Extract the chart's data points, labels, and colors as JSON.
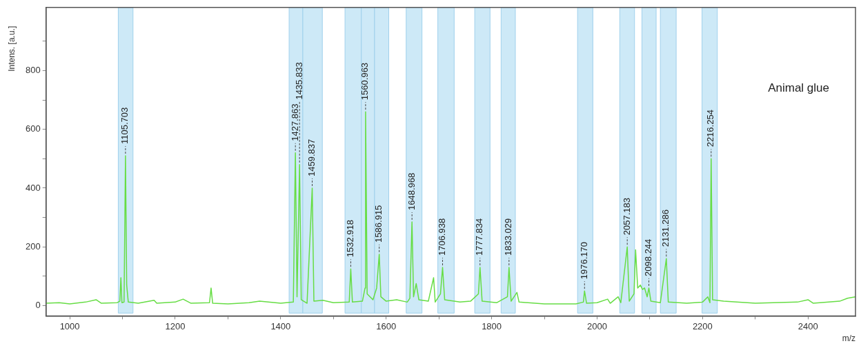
{
  "chart_data": {
    "type": "line",
    "xlabel": "m/z",
    "ylabel": "Intens. [a.u.]",
    "grid": false,
    "legend": false,
    "marker": "none",
    "line_style": "solid",
    "xlim": [
      955,
      2490
    ],
    "ylim": [
      -35,
      1015
    ],
    "xticks": [
      1000,
      {
        "value": 1100,
        "label": null
      },
      1200,
      {
        "value": 1300,
        "label": null
      },
      1400,
      {
        "value": 1500,
        "label": null
      },
      1600,
      {
        "value": 1700,
        "label": null
      },
      1800,
      {
        "value": 1900,
        "label": null
      },
      2000,
      {
        "value": 2100,
        "label": null
      },
      2200,
      {
        "value": 2300,
        "label": null
      },
      2400
    ],
    "yticks": [
      0,
      {
        "value": 100,
        "label": null
      },
      200,
      {
        "value": 300,
        "label": null
      },
      400,
      {
        "value": 500,
        "label": null
      },
      600,
      {
        "value": 700,
        "label": null
      },
      800,
      {
        "value": 900,
        "label": null
      }
    ],
    "series": [
      {
        "color": "#66dd44",
        "x": [
          955,
          980,
          1000,
          1030,
          1050,
          1060,
          1090,
          1095,
          1097,
          1099,
          1103,
          1105.7,
          1108,
          1111,
          1130,
          1160,
          1165,
          1200,
          1215,
          1230,
          1265,
          1268,
          1271,
          1300,
          1340,
          1360,
          1400,
          1424,
          1427.9,
          1431,
          1435.8,
          1439,
          1450,
          1459.8,
          1463,
          1480,
          1500,
          1530,
          1532.9,
          1536,
          1555,
          1560,
          1561,
          1564,
          1575,
          1582,
          1586.9,
          1590,
          1600,
          1620,
          1640,
          1645,
          1649,
          1652,
          1657,
          1662,
          1680,
          1690,
          1693,
          1703,
          1707,
          1711,
          1740,
          1760,
          1775,
          1778,
          1782,
          1810,
          1830,
          1833,
          1837,
          1848,
          1852,
          1900,
          1960,
          1974,
          1976.2,
          1980,
          2000,
          2020,
          2025,
          2040,
          2045,
          2057.2,
          2061,
          2070,
          2073,
          2077,
          2082,
          2086,
          2090,
          2095,
          2098.2,
          2102,
          2120,
          2131.3,
          2135,
          2170,
          2200,
          2210,
          2214,
          2216.3,
          2219,
          2240,
          2300,
          2380,
          2400,
          2410,
          2460,
          2475,
          2490
        ],
        "values": [
          8,
          10,
          6,
          12,
          20,
          8,
          10,
          15,
          95,
          10,
          12,
          510,
          70,
          12,
          8,
          18,
          8,
          12,
          22,
          8,
          10,
          60,
          8,
          6,
          10,
          15,
          8,
          12,
          520,
          30,
          480,
          20,
          8,
          400,
          15,
          18,
          10,
          12,
          125,
          12,
          15,
          60,
          660,
          40,
          20,
          60,
          175,
          30,
          15,
          20,
          12,
          25,
          285,
          30,
          75,
          20,
          15,
          95,
          12,
          40,
          130,
          20,
          12,
          15,
          40,
          130,
          15,
          10,
          30,
          130,
          15,
          45,
          12,
          6,
          6,
          12,
          50,
          8,
          10,
          22,
          8,
          30,
          10,
          200,
          15,
          40,
          190,
          60,
          70,
          55,
          60,
          30,
          60,
          15,
          10,
          160,
          12,
          8,
          12,
          30,
          10,
          500,
          20,
          15,
          8,
          12,
          20,
          8,
          15,
          25,
          30
        ]
      }
    ],
    "bands": [
      {
        "axis": "x",
        "from": 1092,
        "to": 1120,
        "color": "#cde9f7"
      },
      {
        "axis": "x",
        "from": 1416,
        "to": 1442,
        "color": "#cde9f7"
      },
      {
        "axis": "x",
        "from": 1442,
        "to": 1479,
        "color": "#cde9f7"
      },
      {
        "axis": "x",
        "from": 1522,
        "to": 1553,
        "color": "#cde9f7"
      },
      {
        "axis": "x",
        "from": 1553,
        "to": 1578,
        "color": "#cde9f7"
      },
      {
        "axis": "x",
        "from": 1578,
        "to": 1605,
        "color": "#cde9f7"
      },
      {
        "axis": "x",
        "from": 1638,
        "to": 1668,
        "color": "#cde9f7"
      },
      {
        "axis": "x",
        "from": 1698,
        "to": 1729,
        "color": "#cde9f7"
      },
      {
        "axis": "x",
        "from": 1768,
        "to": 1797,
        "color": "#cde9f7"
      },
      {
        "axis": "x",
        "from": 1818,
        "to": 1845,
        "color": "#cde9f7"
      },
      {
        "axis": "x",
        "from": 1963,
        "to": 1992,
        "color": "#cde9f7"
      },
      {
        "axis": "x",
        "from": 2043,
        "to": 2071,
        "color": "#cde9f7"
      },
      {
        "axis": "x",
        "from": 2085,
        "to": 2112,
        "color": "#cde9f7"
      },
      {
        "axis": "x",
        "from": 2120,
        "to": 2150,
        "color": "#cde9f7"
      },
      {
        "axis": "x",
        "from": 2199,
        "to": 2228,
        "color": "#cde9f7"
      }
    ],
    "annotations": [
      "Animal glue",
      {
        "text": "1105.703",
        "x": 1105.7,
        "y": 510
      },
      {
        "text": "1427.863",
        "x": 1427.9,
        "y": 520
      },
      {
        "text": "1435.833",
        "x": 1435.8,
        "y": 480
      },
      {
        "text": "1459.837",
        "x": 1459.8,
        "y": 400
      },
      {
        "text": "1532.918",
        "x": 1532.9,
        "y": 125
      },
      {
        "text": "1560.963",
        "x": 1561,
        "y": 660
      },
      {
        "text": "1586.915",
        "x": 1586.9,
        "y": 175
      },
      {
        "text": "1648.968",
        "x": 1649,
        "y": 285
      },
      {
        "text": "1706.938",
        "x": 1707,
        "y": 130
      },
      {
        "text": "1777.834",
        "x": 1778,
        "y": 130
      },
      {
        "text": "1833.029",
        "x": 1833,
        "y": 130
      },
      {
        "text": "1976.170",
        "x": 1976.2,
        "y": 50
      },
      {
        "text": "2057.183",
        "x": 2057.2,
        "y": 200
      },
      {
        "text": "2098.244",
        "x": 2098.2,
        "y": 60
      },
      {
        "text": "2131.286",
        "x": 2131.3,
        "y": 160
      },
      {
        "text": "2216.254",
        "x": 2216.3,
        "y": 500
      }
    ]
  }
}
